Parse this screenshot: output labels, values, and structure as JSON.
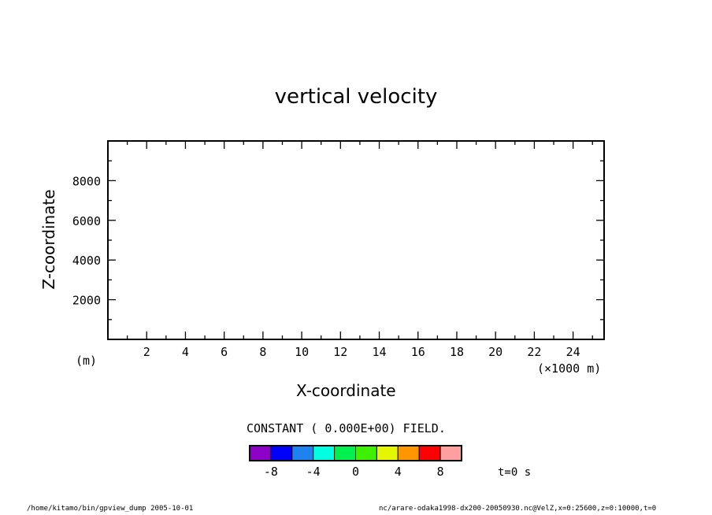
{
  "chart_data": {
    "type": "heatmap",
    "title": "vertical velocity",
    "xlabel": "X-coordinate",
    "ylabel": "Z-coordinate",
    "x_unit": "(×1000 m)",
    "y_unit": "(m)",
    "xlim": [
      0,
      25.6
    ],
    "ylim": [
      0,
      10000
    ],
    "x_ticks": [
      2,
      4,
      6,
      8,
      10,
      12,
      14,
      16,
      18,
      20,
      22,
      24
    ],
    "y_ticks": [
      2000,
      4000,
      6000,
      8000
    ],
    "field_note": "CONSTANT ( 0.000E+00) FIELD.",
    "colorbar": {
      "colors": [
        "#8c00c8",
        "#0000ff",
        "#1e82f0",
        "#00ffe0",
        "#00f050",
        "#3cf000",
        "#e6f500",
        "#ff9600",
        "#ff0000",
        "#ffa0a0"
      ],
      "tick_labels": [
        "-8",
        "-4",
        "0",
        "4",
        "8"
      ],
      "tick_values": [
        -8,
        -4,
        0,
        4,
        8
      ],
      "range": [
        -10,
        10
      ]
    },
    "time_label": "t=0 s"
  },
  "footer": {
    "left": "/home/kitamo/bin/gpview_dump  2005-10-01",
    "right": "nc/arare-odaka1998-dx200-20050930.nc@VelZ,x=0:25600,z=0:10000,t=0"
  }
}
